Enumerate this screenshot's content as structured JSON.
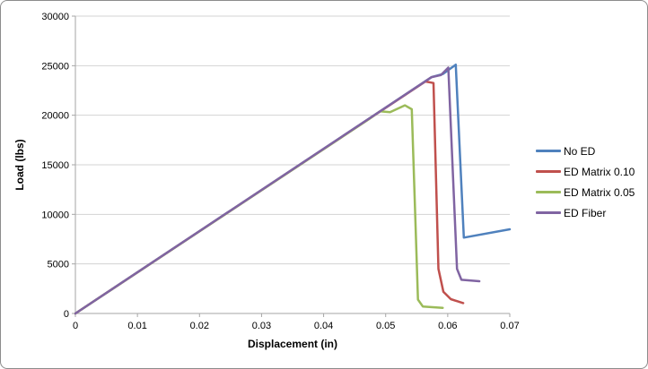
{
  "window": {
    "background": "#FFFFFF",
    "border_color": "#8C8C8C"
  },
  "chart_data": {
    "type": "line",
    "title": "",
    "xlabel": "Displacement (in)",
    "ylabel": "Load (lbs)",
    "xlim": [
      0,
      0.07
    ],
    "ylim": [
      0,
      30000
    ],
    "xticks": [
      0,
      0.01,
      0.02,
      0.03,
      0.04,
      0.05,
      0.06,
      0.07
    ],
    "xtick_labels": [
      "0",
      "0.01",
      "0.02",
      "0.03",
      "0.04",
      "0.05",
      "0.06",
      "0.07"
    ],
    "yticks": [
      0,
      5000,
      10000,
      15000,
      20000,
      25000,
      30000
    ],
    "ytick_labels": [
      "0",
      "5000",
      "10000",
      "15000",
      "20000",
      "25000",
      "30000"
    ],
    "grid": "horizontal",
    "legend_position": "right",
    "axis_color": "#A6A6A6",
    "gridline_color": "#D3D3D3",
    "line_width": 2.5,
    "series": [
      {
        "name": "No ED",
        "color": "#4F81BD",
        "points": [
          [
            0,
            0
          ],
          [
            0.0574,
            23850
          ],
          [
            0.0592,
            24150
          ],
          [
            0.0613,
            25100
          ],
          [
            0.0626,
            7650
          ],
          [
            0.07,
            8490
          ]
        ]
      },
      {
        "name": "ED Matrix 0.10",
        "color": "#C0504D",
        "points": [
          [
            0,
            0
          ],
          [
            0.0564,
            23400
          ],
          [
            0.0577,
            23250
          ],
          [
            0.0585,
            4500
          ],
          [
            0.0593,
            2200
          ],
          [
            0.0605,
            1450
          ],
          [
            0.0625,
            1050
          ]
        ]
      },
      {
        "name": "ED Matrix 0.05",
        "color": "#9BBB59",
        "points": [
          [
            0,
            0
          ],
          [
            0.0473,
            19600
          ],
          [
            0.0491,
            20400
          ],
          [
            0.0507,
            20300
          ],
          [
            0.0531,
            21000
          ],
          [
            0.0542,
            20600
          ],
          [
            0.0552,
            1400
          ],
          [
            0.056,
            700
          ],
          [
            0.0592,
            570
          ]
        ]
      },
      {
        "name": "ED Fiber",
        "color": "#8064A2",
        "points": [
          [
            0,
            0
          ],
          [
            0.0574,
            23850
          ],
          [
            0.0589,
            24050
          ],
          [
            0.0601,
            24800
          ],
          [
            0.0615,
            4500
          ],
          [
            0.0622,
            3400
          ],
          [
            0.0651,
            3250
          ]
        ]
      }
    ]
  }
}
